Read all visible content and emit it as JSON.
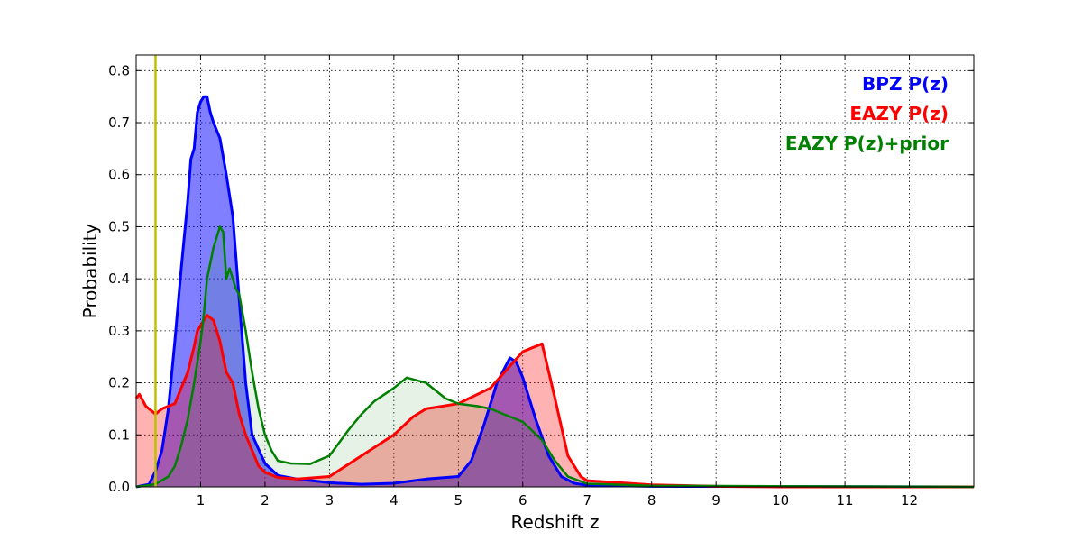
{
  "chart_data": {
    "type": "area",
    "title": "",
    "xlabel": "Redshift z",
    "ylabel": "Probability",
    "xlim": [
      0,
      13
    ],
    "ylim": [
      0,
      0.83
    ],
    "xticks": [
      1,
      2,
      3,
      4,
      5,
      6,
      7,
      8,
      9,
      10,
      11,
      12
    ],
    "yticks": [
      0.0,
      0.1,
      0.2,
      0.3,
      0.4,
      0.5,
      0.6,
      0.7,
      0.8
    ],
    "grid": true,
    "legend_position": "top-right",
    "vertical_line": {
      "x": 0.3,
      "color": "#bfbf00"
    },
    "series": [
      {
        "name": "BPZ P(z)",
        "color": "#0000ff",
        "fill_opacity": 0.5,
        "stroke_width": 3,
        "x": [
          0,
          0.2,
          0.3,
          0.4,
          0.5,
          0.6,
          0.7,
          0.8,
          0.85,
          0.9,
          0.95,
          1.0,
          1.05,
          1.1,
          1.15,
          1.2,
          1.3,
          1.4,
          1.5,
          1.6,
          1.7,
          1.8,
          2.0,
          2.2,
          2.5,
          3.0,
          3.5,
          4.0,
          4.5,
          5.0,
          5.2,
          5.4,
          5.6,
          5.8,
          5.9,
          6.0,
          6.2,
          6.4,
          6.6,
          6.8,
          7.0,
          8.0,
          13.0
        ],
        "y": [
          0,
          0.005,
          0.03,
          0.07,
          0.15,
          0.28,
          0.42,
          0.55,
          0.63,
          0.65,
          0.72,
          0.74,
          0.75,
          0.75,
          0.72,
          0.7,
          0.67,
          0.6,
          0.52,
          0.36,
          0.2,
          0.1,
          0.045,
          0.022,
          0.015,
          0.008,
          0.005,
          0.007,
          0.015,
          0.02,
          0.05,
          0.12,
          0.2,
          0.248,
          0.24,
          0.21,
          0.13,
          0.06,
          0.02,
          0.007,
          0.003,
          0.001,
          0
        ]
      },
      {
        "name": "EAZY P(z)",
        "color": "#ff0000",
        "fill_opacity": 0.3,
        "stroke_width": 3,
        "x": [
          0,
          0.05,
          0.15,
          0.3,
          0.4,
          0.6,
          0.7,
          0.8,
          0.9,
          0.95,
          1.0,
          1.1,
          1.2,
          1.3,
          1.4,
          1.5,
          1.6,
          1.7,
          1.8,
          1.9,
          2.0,
          2.2,
          2.5,
          3.0,
          3.5,
          4.0,
          4.3,
          4.5,
          5.0,
          5.5,
          6.0,
          6.2,
          6.3,
          6.5,
          6.7,
          6.9,
          7.0,
          7.5,
          8.0,
          9.0,
          10.0,
          13.0
        ],
        "y": [
          0.17,
          0.178,
          0.155,
          0.14,
          0.15,
          0.16,
          0.19,
          0.22,
          0.27,
          0.3,
          0.31,
          0.33,
          0.32,
          0.28,
          0.22,
          0.2,
          0.14,
          0.1,
          0.07,
          0.04,
          0.028,
          0.018,
          0.015,
          0.02,
          0.06,
          0.1,
          0.135,
          0.15,
          0.16,
          0.19,
          0.26,
          0.27,
          0.275,
          0.17,
          0.06,
          0.02,
          0.012,
          0.008,
          0.004,
          0.001,
          0,
          0
        ]
      },
      {
        "name": "EAZY P(z)+prior",
        "color": "#008000",
        "fill_opacity": 0.1,
        "stroke_width": 2.5,
        "x": [
          0,
          0.3,
          0.5,
          0.6,
          0.7,
          0.8,
          0.9,
          1.0,
          1.05,
          1.1,
          1.2,
          1.3,
          1.35,
          1.4,
          1.45,
          1.5,
          1.55,
          1.6,
          1.7,
          1.8,
          1.9,
          2.0,
          2.1,
          2.2,
          2.4,
          2.7,
          3.0,
          3.3,
          3.5,
          3.7,
          4.0,
          4.2,
          4.5,
          4.8,
          5.0,
          5.3,
          5.5,
          6.0,
          6.3,
          6.5,
          6.7,
          7.0,
          8.0,
          13.0
        ],
        "y": [
          0,
          0.005,
          0.02,
          0.04,
          0.08,
          0.13,
          0.2,
          0.28,
          0.33,
          0.4,
          0.46,
          0.5,
          0.49,
          0.4,
          0.42,
          0.4,
          0.38,
          0.37,
          0.3,
          0.22,
          0.15,
          0.1,
          0.07,
          0.05,
          0.045,
          0.044,
          0.06,
          0.11,
          0.14,
          0.165,
          0.19,
          0.21,
          0.2,
          0.17,
          0.16,
          0.155,
          0.15,
          0.125,
          0.09,
          0.05,
          0.02,
          0.006,
          0.002,
          0
        ]
      }
    ]
  }
}
